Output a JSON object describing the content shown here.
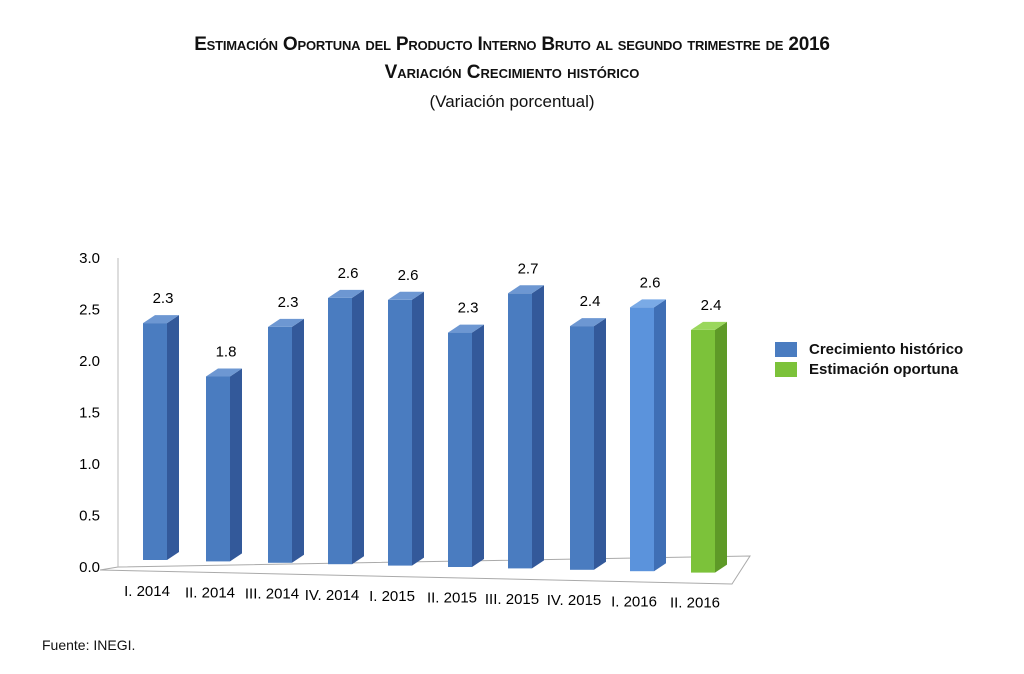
{
  "chart_data": {
    "type": "bar",
    "title": "Estimación Oportuna del Producto Interno Bruto al segundo trimestre de 2016",
    "subtitle": "Variación Crecimiento histórico",
    "subtitle2": "(Variación porcentual)",
    "categories": [
      "I. 2014",
      "II. 2014",
      "III. 2014",
      "IV. 2014",
      "I. 2015",
      "II. 2015",
      "III. 2015",
      "IV. 2015",
      "I. 2016",
      "II. 2016"
    ],
    "values": [
      2.3,
      1.8,
      2.3,
      2.6,
      2.6,
      2.3,
      2.7,
      2.4,
      2.6,
      2.4
    ],
    "value_labels": [
      "2.3",
      "1.8",
      "2.3",
      "2.6",
      "2.6",
      "2.3",
      "2.7",
      "2.4",
      "2.6",
      "2.4"
    ],
    "series_of_bar": [
      "Crecimiento histórico",
      "Crecimiento histórico",
      "Crecimiento histórico",
      "Crecimiento histórico",
      "Crecimiento histórico",
      "Crecimiento histórico",
      "Crecimiento histórico",
      "Crecimiento histórico",
      "Crecimiento histórico",
      "Estimación oportuna"
    ],
    "ylim": [
      0,
      3.0
    ],
    "yticks": [
      "0.0",
      "0.5",
      "1.0",
      "1.5",
      "2.0",
      "2.5",
      "3.0"
    ],
    "legend": [
      {
        "name": "Crecimiento histórico",
        "color": "#4a7cc0"
      },
      {
        "name": "Estimación oportuna",
        "color": "#7cc23a"
      }
    ],
    "legend_position": "right",
    "source": "Fuente: INEGI."
  }
}
